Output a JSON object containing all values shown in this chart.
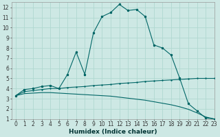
{
  "xlabel": "Humidex (Indice chaleur)",
  "background_color": "#cde8e4",
  "grid_color": "#b0d8d0",
  "line_color": "#006666",
  "xlim": [
    -0.5,
    23
  ],
  "ylim": [
    1,
    12.5
  ],
  "xticks": [
    0,
    1,
    2,
    3,
    4,
    5,
    6,
    7,
    8,
    9,
    10,
    11,
    12,
    13,
    14,
    15,
    16,
    17,
    18,
    19,
    20,
    21,
    22,
    23
  ],
  "yticks": [
    1,
    2,
    3,
    4,
    5,
    6,
    7,
    8,
    9,
    10,
    11,
    12
  ],
  "series1_x": [
    0,
    1,
    2,
    3,
    4,
    5,
    6,
    7,
    8,
    9,
    10,
    11,
    12,
    13,
    14,
    15,
    16,
    17,
    18,
    19,
    20,
    21,
    22,
    23
  ],
  "series1_y": [
    3.3,
    3.9,
    4.0,
    4.2,
    4.3,
    4.0,
    5.4,
    7.6,
    5.4,
    9.5,
    11.1,
    11.5,
    12.3,
    11.7,
    11.8,
    11.1,
    8.3,
    8.0,
    7.3,
    5.0,
    2.5,
    1.8,
    1.1,
    1.0
  ],
  "series2_x": [
    0,
    1,
    2,
    3,
    4,
    5,
    6,
    7,
    8,
    9,
    10,
    11,
    12,
    13,
    14,
    15,
    16,
    17,
    18,
    19,
    20,
    21,
    22,
    23
  ],
  "series2_y": [
    3.3,
    3.7,
    3.8,
    3.9,
    4.0,
    4.0,
    4.1,
    4.15,
    4.2,
    4.3,
    4.35,
    4.4,
    4.5,
    4.55,
    4.6,
    4.7,
    4.75,
    4.8,
    4.85,
    4.9,
    4.95,
    5.0,
    5.0,
    5.0
  ],
  "series3_x": [
    0,
    1,
    2,
    3,
    4,
    5,
    6,
    7,
    8,
    9,
    10,
    11,
    12,
    13,
    14,
    15,
    16,
    17,
    18,
    19,
    20,
    21,
    22,
    23
  ],
  "series3_y": [
    3.3,
    3.5,
    3.55,
    3.6,
    3.6,
    3.55,
    3.5,
    3.45,
    3.4,
    3.35,
    3.3,
    3.25,
    3.15,
    3.05,
    2.95,
    2.85,
    2.7,
    2.55,
    2.4,
    2.2,
    1.95,
    1.6,
    1.2,
    1.0
  ],
  "tick_fontsize": 5.5,
  "xlabel_fontsize": 6.5
}
